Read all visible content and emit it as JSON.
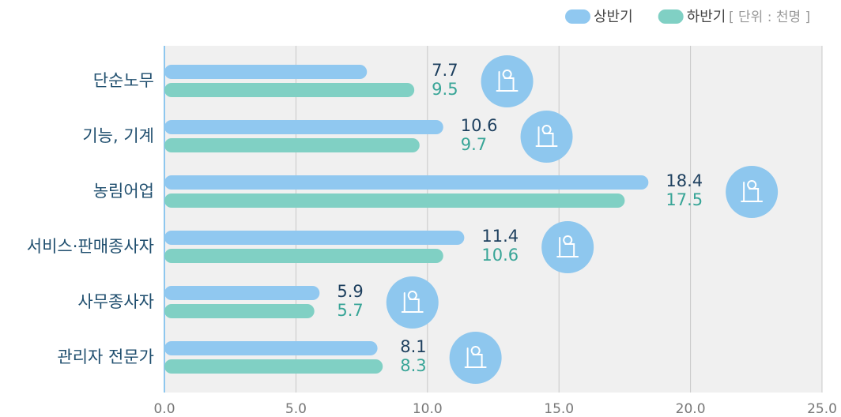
{
  "chart_data": {
    "type": "bar",
    "orientation": "horizontal",
    "unit": "[ 단위 : 천명 ]",
    "categories": [
      "단순노무",
      "기능, 기계",
      "농림어업",
      "서비스·판매종사자",
      "사무종사자",
      "관리자 전문가"
    ],
    "series": [
      {
        "name": "상반기",
        "color": "#90c8f0",
        "label_color": "#1d3f5e",
        "values": [
          7.7,
          10.6,
          18.4,
          11.4,
          5.9,
          8.1
        ]
      },
      {
        "name": "하반기",
        "color": "#80d0c4",
        "label_color": "#38a597",
        "values": [
          9.5,
          9.7,
          17.5,
          10.6,
          5.7,
          8.3
        ]
      }
    ],
    "xlim": [
      0,
      25
    ],
    "xticks": [
      {
        "value": 0,
        "label": "0.0"
      },
      {
        "value": 5,
        "label": "5.0"
      },
      {
        "value": 10,
        "label": "10.0"
      },
      {
        "value": 15,
        "label": "15.0"
      },
      {
        "value": 20,
        "label": "20.0"
      },
      {
        "value": 25,
        "label": "25.0"
      }
    ],
    "grid": true
  }
}
